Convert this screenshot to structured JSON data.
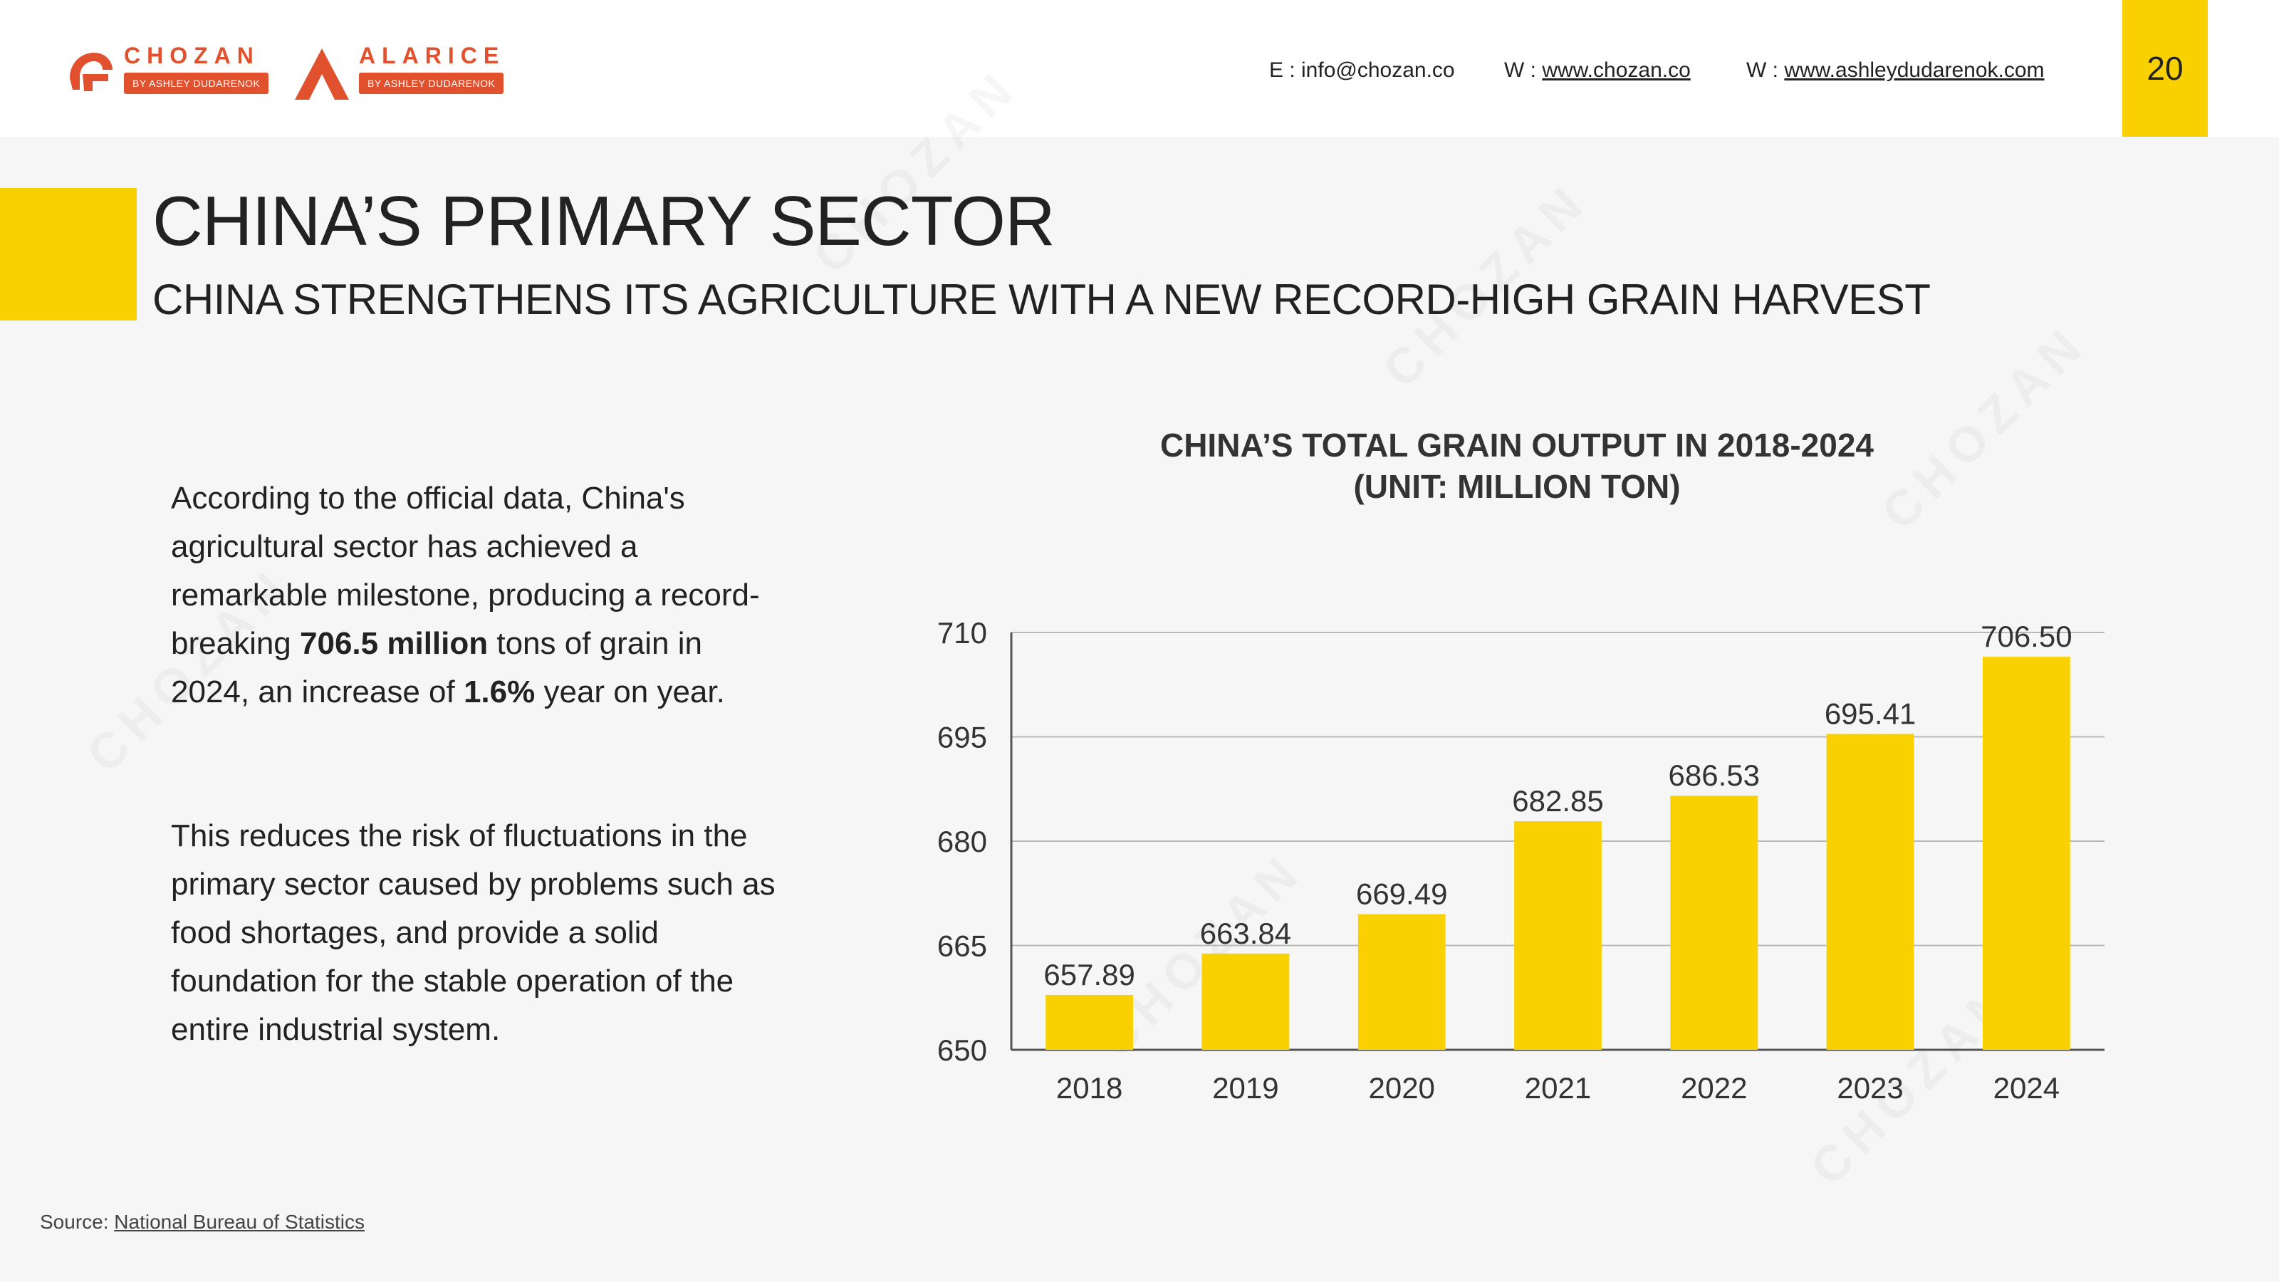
{
  "header": {
    "logo_chozan": {
      "name": "CHOZAN",
      "tagline": "BY ASHLEY DUDARENOK"
    },
    "logo_alarice": {
      "name": "ALARICE",
      "tagline": "BY ASHLEY DUDARENOK"
    },
    "email_label": "E : info@chozan.co",
    "web1_prefix": "W :",
    "web1_link": "www.chozan.co",
    "web2_prefix": "W :",
    "web2_link": "www.ashleydudarenok.com",
    "page_number": "20"
  },
  "colors": {
    "accent": "#f9d100",
    "brand": "#e2512e",
    "bar": "#f9d100"
  },
  "title": "CHINA’S PRIMARY SECTOR",
  "subtitle": "CHINA STRENGTHENS ITS AGRICULTURE WITH A NEW RECORD-HIGH GRAIN HARVEST",
  "paragraph1": {
    "p1": "According to the official data, China's agricultural sector has achieved a remarkable milestone, producing a record-breaking ",
    "b1": "706.5 million",
    "p2": " tons of grain in 2024, an increase of ",
    "b2": "1.6%",
    "p3": " year on year."
  },
  "paragraph2": "This reduces the risk of fluctuations in the primary sector caused by problems such as food shortages, and provide a solid foundation for the stable operation of the entire industrial system.",
  "source": {
    "label": "Source:",
    "link": "National Bureau of Statistics"
  },
  "chart_data": {
    "type": "bar",
    "title_line1": "CHINA’S TOTAL GRAIN OUTPUT IN 2018-2024",
    "title_line2": "(UNIT: MILLION TON)",
    "categories": [
      "2018",
      "2019",
      "2020",
      "2021",
      "2022",
      "2023",
      "2024"
    ],
    "values": [
      657.89,
      663.84,
      669.49,
      682.85,
      686.53,
      695.41,
      706.5
    ],
    "value_labels": [
      "657.89",
      "663.84",
      "669.49",
      "682.85",
      "686.53",
      "695.41",
      "706.50"
    ],
    "ylim": [
      650,
      710
    ],
    "yticks": [
      650,
      665,
      680,
      695,
      710
    ],
    "grid": true
  }
}
